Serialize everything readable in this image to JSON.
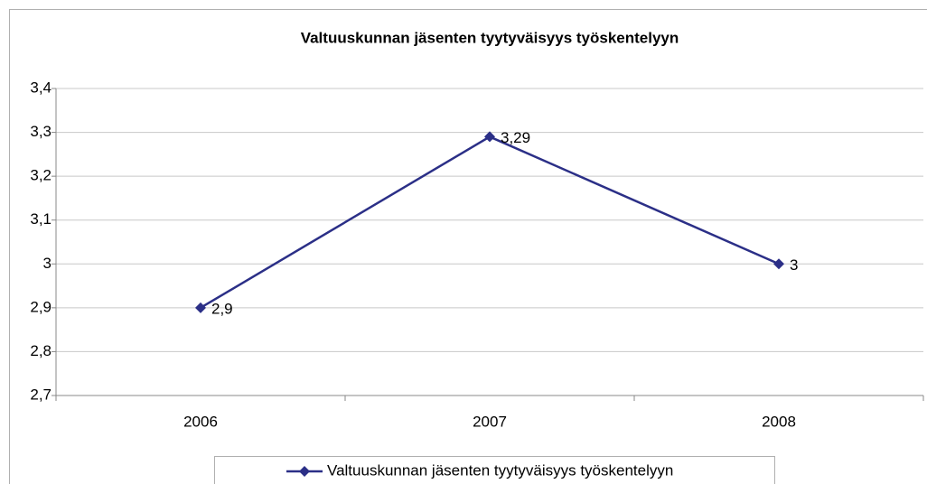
{
  "chart_data": {
    "type": "line",
    "title": "Valtuuskunnan jäsenten tyytyväisyys työskentelyyn",
    "categories": [
      "2006",
      "2007",
      "2008"
    ],
    "series": [
      {
        "name": "Valtuuskunnan jäsenten tyytyväisyys työskentelyyn",
        "color": "#2b2f87",
        "values": [
          2.9,
          3.29,
          3
        ],
        "value_labels": [
          "2,9",
          "3,29",
          "3"
        ]
      }
    ],
    "ylim": [
      2.7,
      3.4
    ],
    "yticks": [
      {
        "value": 2.7,
        "label": "2,7"
      },
      {
        "value": 2.8,
        "label": "2,8"
      },
      {
        "value": 2.9,
        "label": "2,9"
      },
      3,
      {
        "value": 3.1,
        "label": "3,1"
      },
      {
        "value": 3.2,
        "label": "3,2"
      },
      {
        "value": 3.3,
        "label": "3,3"
      },
      {
        "value": 3.4,
        "label": "3,4"
      }
    ],
    "grid": true,
    "legend": "bottom"
  }
}
